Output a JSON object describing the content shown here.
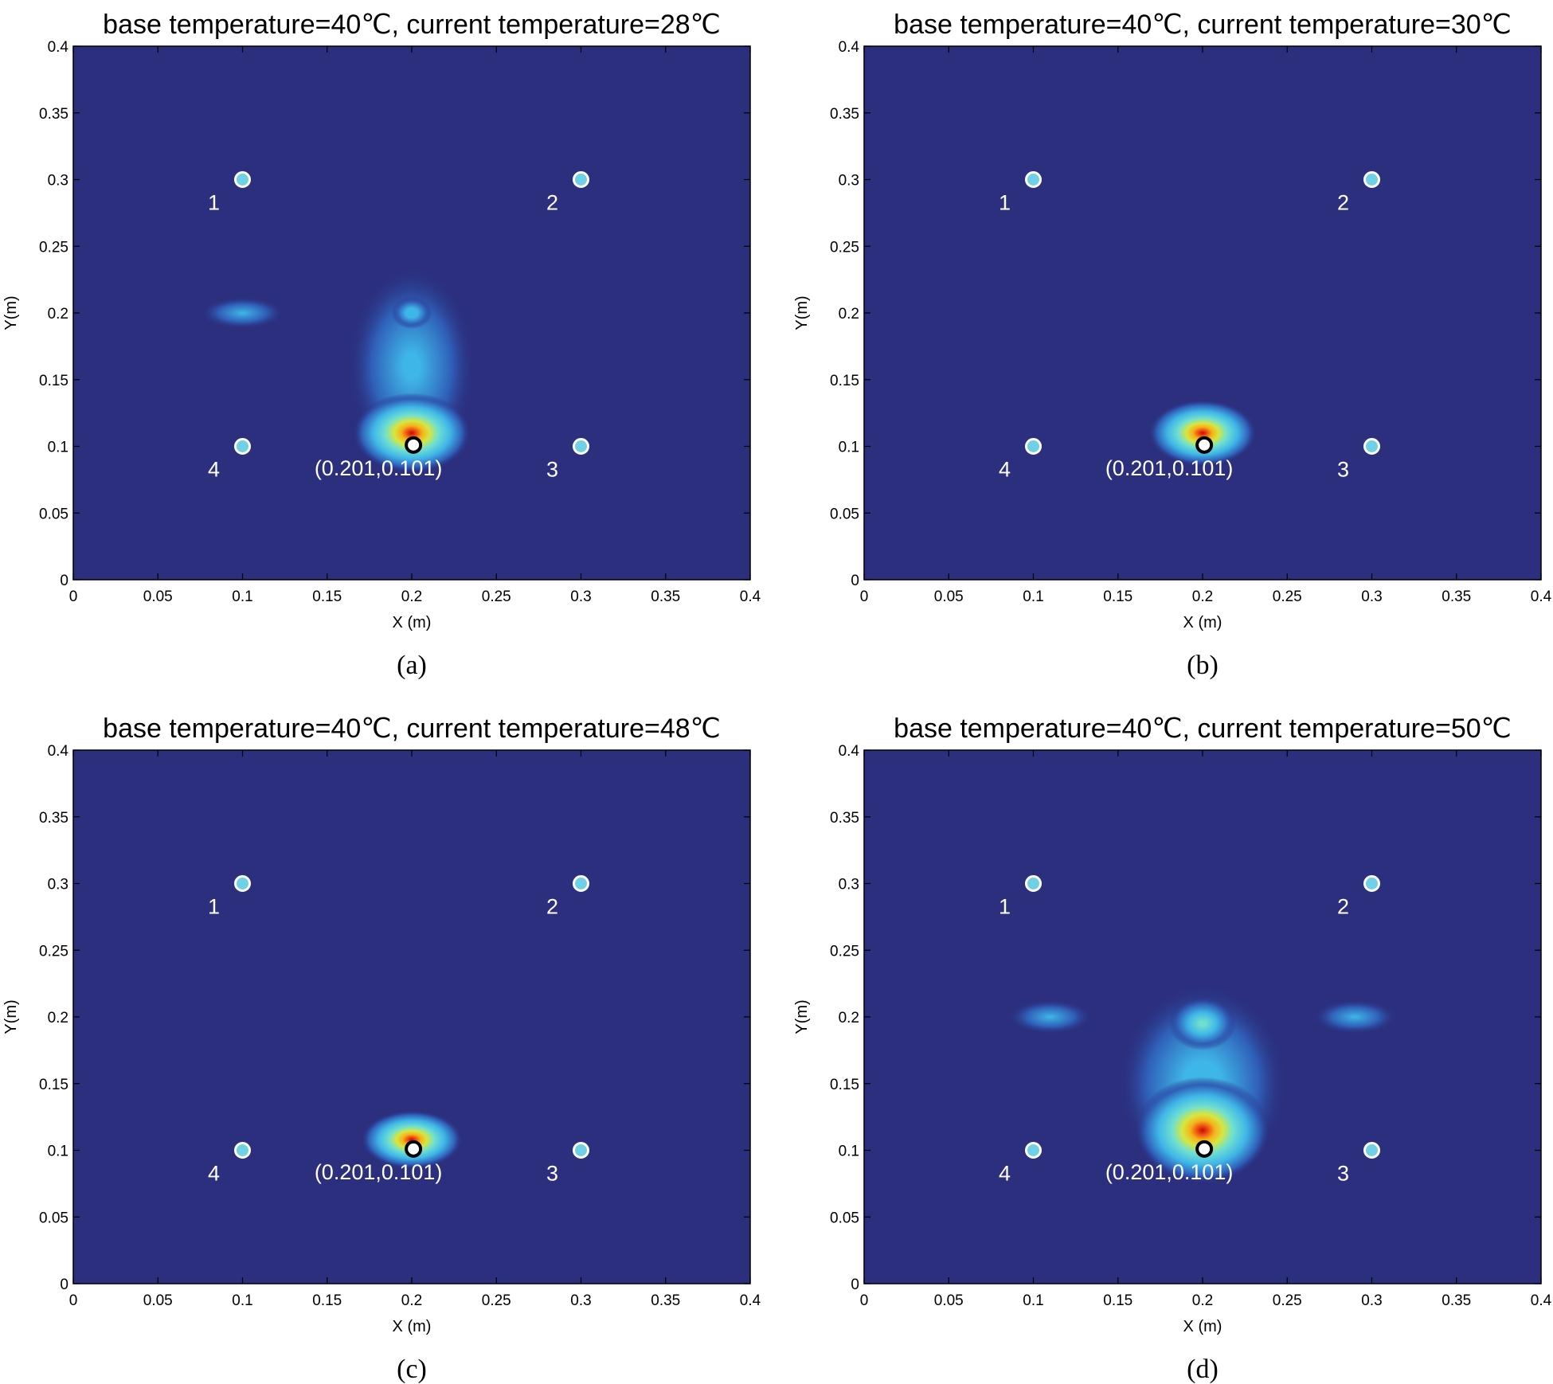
{
  "chart_data": [
    {
      "type": "heatmap",
      "caption": "(a)",
      "title": "base temperature=40℃, current temperature=28℃",
      "xlabel": "X (m)",
      "ylabel": "Y(m)",
      "xlim": [
        0,
        0.4
      ],
      "ylim": [
        0,
        0.4
      ],
      "xticks": [
        "0",
        "0.05",
        "0.1",
        "0.15",
        "0.2",
        "0.25",
        "0.3",
        "0.35",
        "0.4"
      ],
      "yticks": [
        "0",
        "0.05",
        "0.1",
        "0.15",
        "0.2",
        "0.25",
        "0.3",
        "0.35",
        "0.4"
      ],
      "colors": {
        "background": "#2b2f7e",
        "sensor": "#6fd0e6",
        "peak": "#e01010"
      },
      "sensors": [
        {
          "label": "1",
          "x": 0.1,
          "y": 0.3
        },
        {
          "label": "2",
          "x": 0.3,
          "y": 0.3
        },
        {
          "label": "3",
          "x": 0.3,
          "y": 0.1
        },
        {
          "label": "4",
          "x": 0.1,
          "y": 0.1
        }
      ],
      "source": {
        "label": "(0.201,0.101)",
        "x": 0.201,
        "y": 0.101
      },
      "blobs": [
        {
          "x": 0.2,
          "y": 0.16,
          "rx": 0.038,
          "ry": 0.075,
          "intensity": 0.4
        },
        {
          "x": 0.2,
          "y": 0.2,
          "rx": 0.012,
          "ry": 0.012,
          "intensity": 0.5
        },
        {
          "x": 0.1,
          "y": 0.2,
          "rx": 0.025,
          "ry": 0.012,
          "intensity": 0.35
        },
        {
          "x": 0.2,
          "y": 0.11,
          "rx": 0.035,
          "ry": 0.03,
          "intensity": 1.0
        }
      ]
    },
    {
      "type": "heatmap",
      "caption": "(b)",
      "title": "base temperature=40℃, current temperature=30℃",
      "xlabel": "X (m)",
      "ylabel": "Y(m)",
      "xlim": [
        0,
        0.4
      ],
      "ylim": [
        0,
        0.4
      ],
      "xticks": [
        "0",
        "0.05",
        "0.1",
        "0.15",
        "0.2",
        "0.25",
        "0.3",
        "0.35",
        "0.4"
      ],
      "yticks": [
        "0",
        "0.05",
        "0.1",
        "0.15",
        "0.2",
        "0.25",
        "0.3",
        "0.35",
        "0.4"
      ],
      "colors": {
        "background": "#2b2f7e",
        "sensor": "#6fd0e6",
        "peak": "#e01010"
      },
      "sensors": [
        {
          "label": "1",
          "x": 0.1,
          "y": 0.3
        },
        {
          "label": "2",
          "x": 0.3,
          "y": 0.3
        },
        {
          "label": "3",
          "x": 0.3,
          "y": 0.1
        },
        {
          "label": "4",
          "x": 0.1,
          "y": 0.1
        }
      ],
      "source": {
        "label": "(0.201,0.101)",
        "x": 0.201,
        "y": 0.101
      },
      "blobs": [
        {
          "x": 0.2,
          "y": 0.11,
          "rx": 0.032,
          "ry": 0.025,
          "intensity": 1.0
        }
      ]
    },
    {
      "type": "heatmap",
      "caption": "(c)",
      "title": "base temperature=40℃, current temperature=48℃",
      "xlabel": "X (m)",
      "ylabel": "Y(m)",
      "xlim": [
        0,
        0.4
      ],
      "ylim": [
        0,
        0.4
      ],
      "xticks": [
        "0",
        "0.05",
        "0.1",
        "0.15",
        "0.2",
        "0.25",
        "0.3",
        "0.35",
        "0.4"
      ],
      "yticks": [
        "0",
        "0.05",
        "0.1",
        "0.15",
        "0.2",
        "0.25",
        "0.3",
        "0.35",
        "0.4"
      ],
      "colors": {
        "background": "#2b2f7e",
        "sensor": "#6fd0e6",
        "peak": "#e01010"
      },
      "sensors": [
        {
          "label": "1",
          "x": 0.1,
          "y": 0.3
        },
        {
          "label": "2",
          "x": 0.3,
          "y": 0.3
        },
        {
          "label": "3",
          "x": 0.3,
          "y": 0.1
        },
        {
          "label": "4",
          "x": 0.1,
          "y": 0.1
        }
      ],
      "source": {
        "label": "(0.201,0.101)",
        "x": 0.201,
        "y": 0.101
      },
      "blobs": [
        {
          "x": 0.2,
          "y": 0.108,
          "rx": 0.03,
          "ry": 0.022,
          "intensity": 1.0
        }
      ]
    },
    {
      "type": "heatmap",
      "caption": "(d)",
      "title": "base temperature=40℃, current temperature=50℃",
      "xlabel": "X (m)",
      "ylabel": "Y(m)",
      "xlim": [
        0,
        0.4
      ],
      "ylim": [
        0,
        0.4
      ],
      "xticks": [
        "0",
        "0.05",
        "0.1",
        "0.15",
        "0.2",
        "0.25",
        "0.3",
        "0.35",
        "0.4"
      ],
      "yticks": [
        "0",
        "0.05",
        "0.1",
        "0.15",
        "0.2",
        "0.25",
        "0.3",
        "0.35",
        "0.4"
      ],
      "colors": {
        "background": "#2b2f7e",
        "sensor": "#6fd0e6",
        "peak": "#e01010"
      },
      "sensors": [
        {
          "label": "1",
          "x": 0.1,
          "y": 0.3
        },
        {
          "label": "2",
          "x": 0.3,
          "y": 0.3
        },
        {
          "label": "3",
          "x": 0.3,
          "y": 0.1
        },
        {
          "label": "4",
          "x": 0.1,
          "y": 0.1
        }
      ],
      "source": {
        "label": "(0.201,0.101)",
        "x": 0.201,
        "y": 0.101
      },
      "blobs": [
        {
          "x": 0.2,
          "y": 0.15,
          "rx": 0.05,
          "ry": 0.075,
          "intensity": 0.45
        },
        {
          "x": 0.2,
          "y": 0.195,
          "rx": 0.02,
          "ry": 0.02,
          "intensity": 0.6
        },
        {
          "x": 0.11,
          "y": 0.2,
          "rx": 0.025,
          "ry": 0.013,
          "intensity": 0.35
        },
        {
          "x": 0.29,
          "y": 0.2,
          "rx": 0.025,
          "ry": 0.013,
          "intensity": 0.35
        },
        {
          "x": 0.2,
          "y": 0.115,
          "rx": 0.04,
          "ry": 0.04,
          "intensity": 1.0
        }
      ]
    }
  ]
}
